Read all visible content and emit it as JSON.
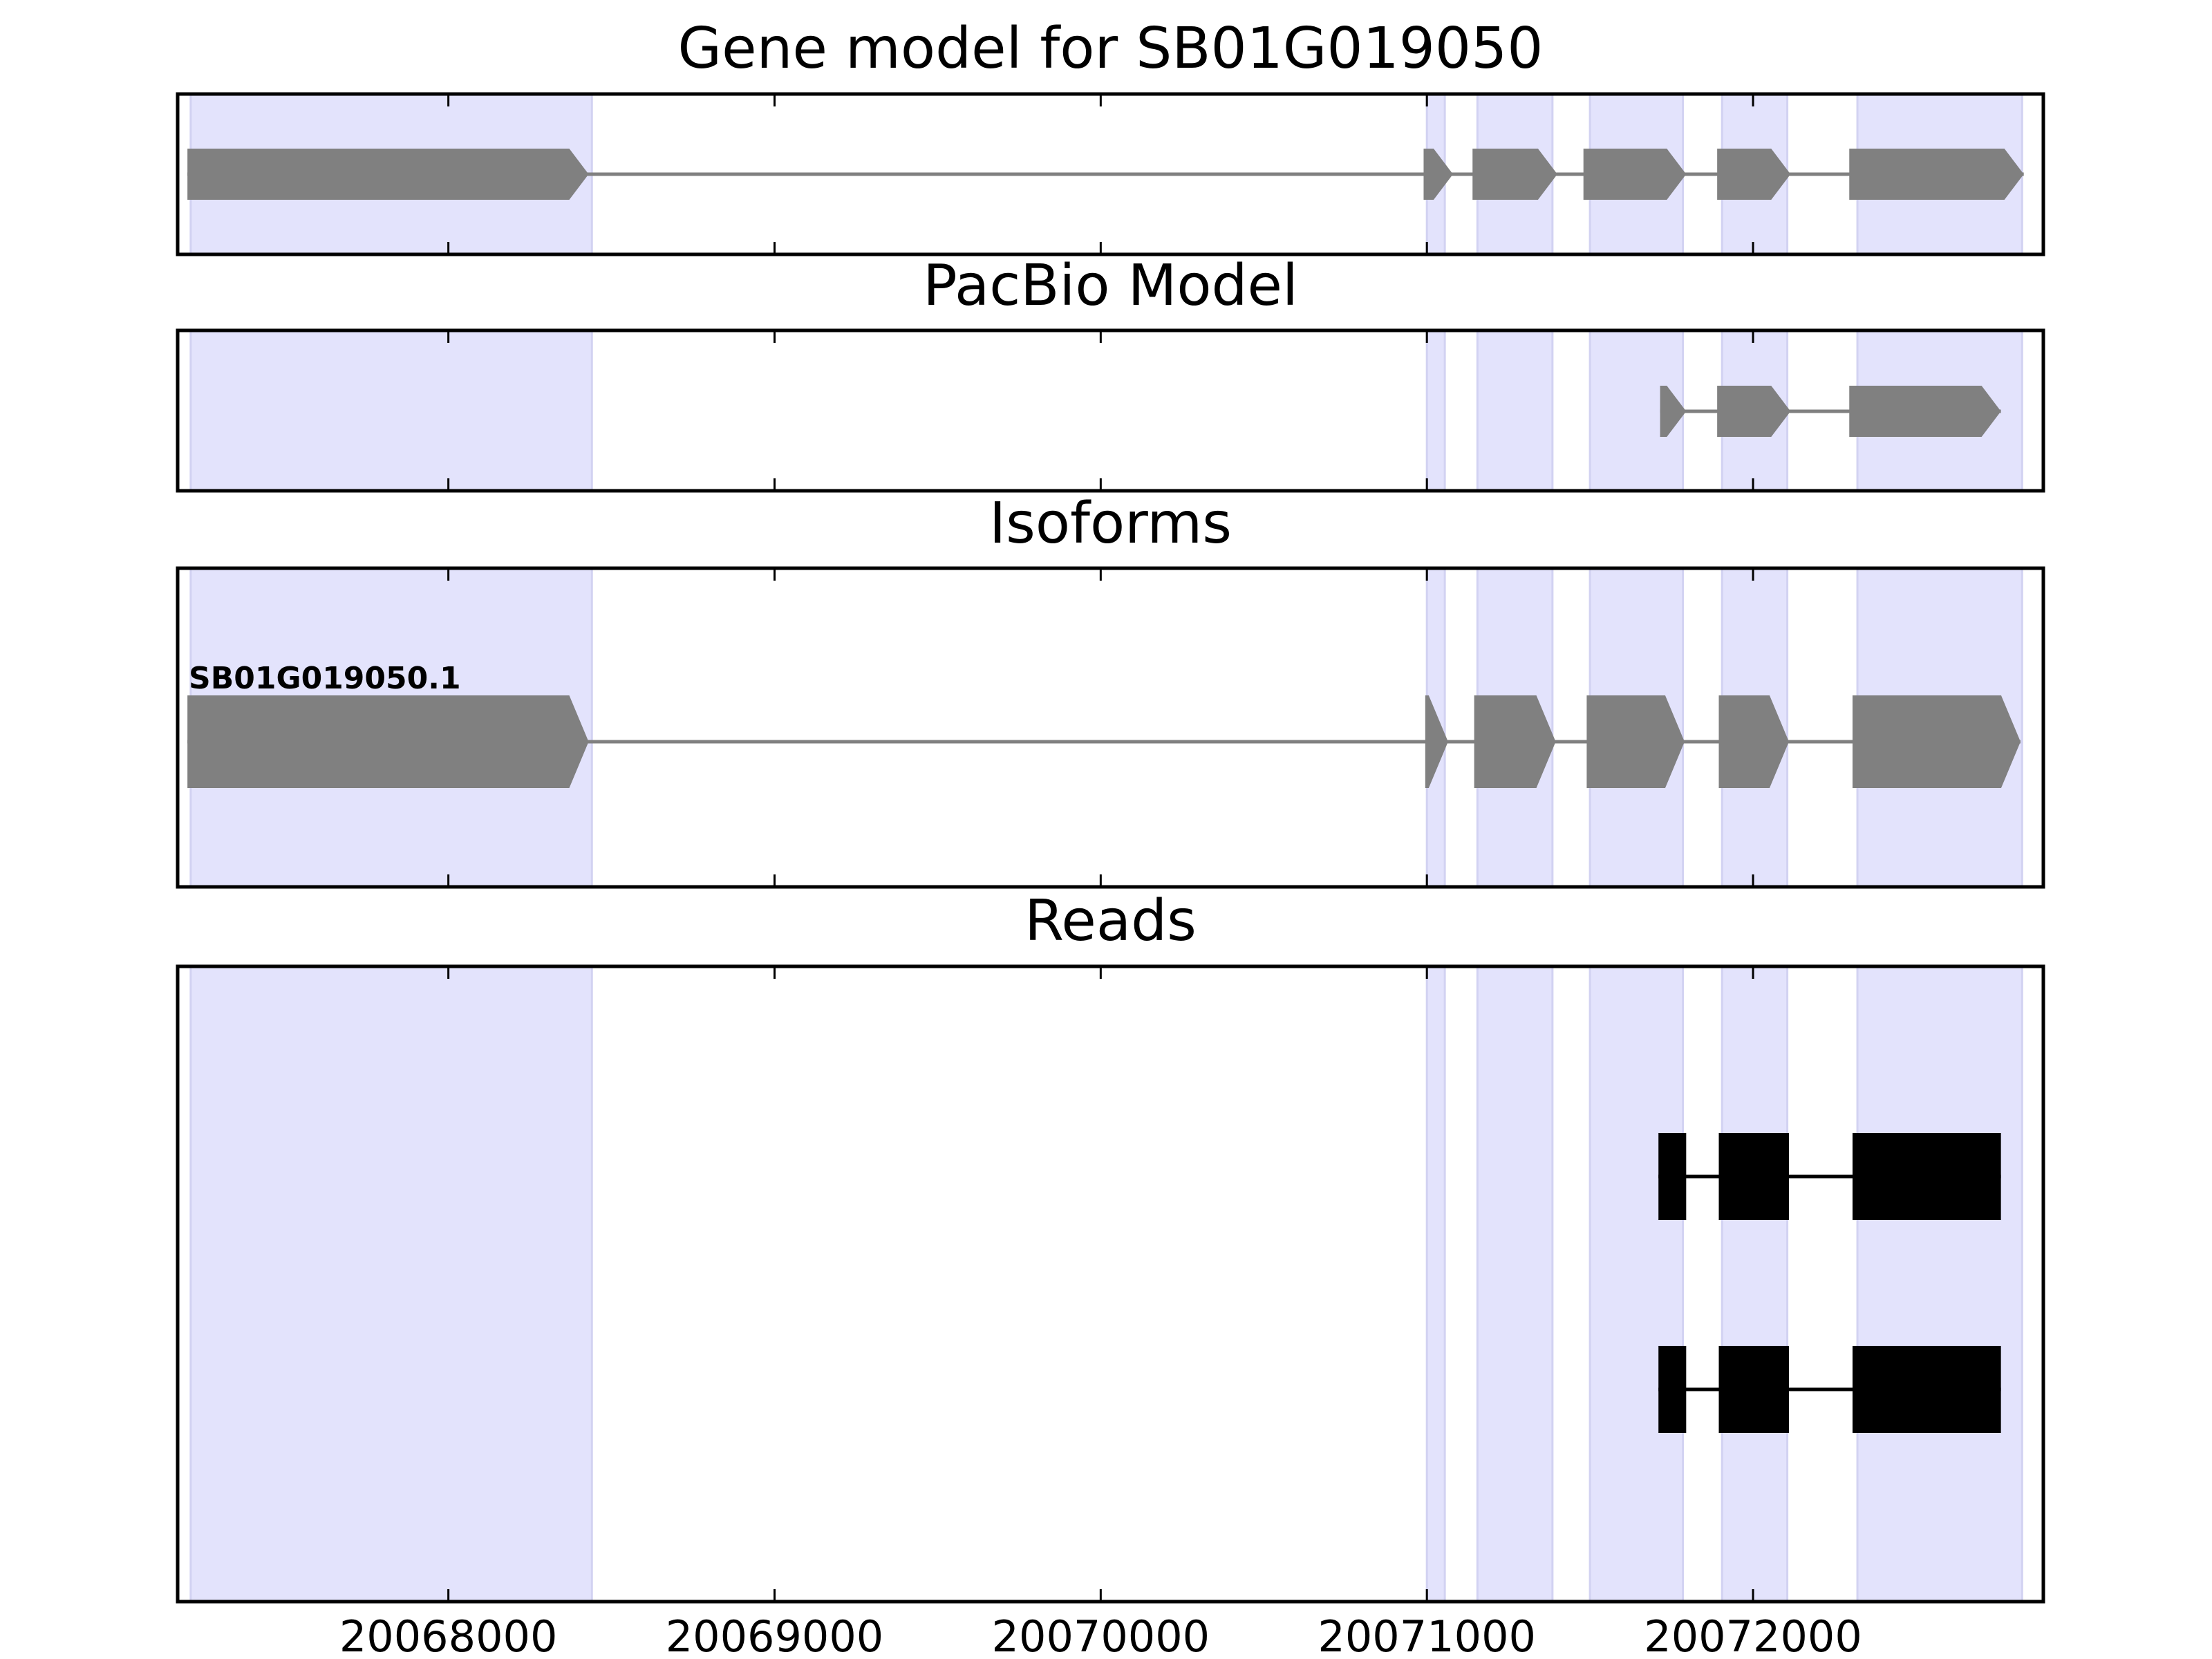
{
  "chart_data": {
    "type": "gene_track",
    "x_range": [
      20067170,
      20072890
    ],
    "x_ticks": [
      20068000,
      20069000,
      20070000,
      20071000,
      20072000
    ],
    "x_tick_labels": [
      "20068000",
      "20069000",
      "20070000",
      "20071000",
      "20072000"
    ],
    "colors": {
      "shade": "#e3e3fc",
      "shade_edge": "#d2d2f2",
      "gene": "#808080",
      "read": "#000000",
      "frame": "#000000"
    },
    "exon_regions": [
      [
        20067210,
        20068440
      ],
      [
        20071000,
        20071055
      ],
      [
        20071155,
        20071385
      ],
      [
        20071500,
        20071785
      ],
      [
        20071905,
        20072105
      ],
      [
        20072320,
        20072825
      ]
    ],
    "panels": [
      {
        "title": "Gene model for SB01G019050",
        "strand": "+",
        "style": "arrow",
        "color": "gene",
        "rows": [
          {
            "label": "",
            "exons": [
              [
                20067200,
                20068430
              ],
              [
                20070990,
                20071080
              ],
              [
                20071140,
                20071400
              ],
              [
                20071480,
                20071795
              ],
              [
                20071890,
                20072115
              ],
              [
                20072295,
                20072830
              ]
            ]
          }
        ]
      },
      {
        "title": "PacBio Model",
        "strand": "+",
        "style": "arrow",
        "color": "gene",
        "rows": [
          {
            "label": "",
            "exons": [
              [
                20071715,
                20071795
              ],
              [
                20071890,
                20072115
              ],
              [
                20072295,
                20072760
              ]
            ]
          }
        ]
      },
      {
        "title": "Isoforms",
        "strand": "+",
        "style": "arrow",
        "color": "gene",
        "rows": [
          {
            "label": "SB01G019050.1",
            "exons": [
              [
                20067200,
                20068430
              ],
              [
                20070995,
                20071065
              ],
              [
                20071145,
                20071395
              ],
              [
                20071490,
                20071790
              ],
              [
                20071895,
                20072110
              ],
              [
                20072305,
                20072820
              ]
            ]
          }
        ]
      },
      {
        "title": "Reads",
        "strand": "+",
        "style": "box",
        "color": "read",
        "rows": [
          {
            "label": "",
            "exons": [
              [
                20071710,
                20071795
              ],
              [
                20071895,
                20072110
              ],
              [
                20072305,
                20072760
              ]
            ]
          },
          {
            "label": "",
            "exons": [
              [
                20071710,
                20071795
              ],
              [
                20071895,
                20072110
              ],
              [
                20072305,
                20072760
              ]
            ]
          }
        ]
      }
    ]
  }
}
